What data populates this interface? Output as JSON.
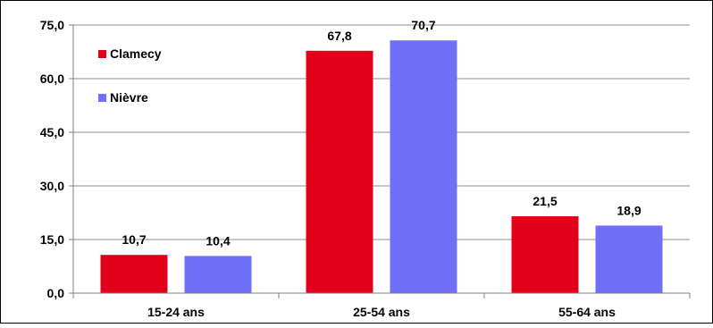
{
  "chart_data": {
    "type": "bar",
    "categories": [
      "15-24 ans",
      "25-54 ans",
      "55-64 ans"
    ],
    "series": [
      {
        "name": "Clamecy",
        "values": [
          10.7,
          67.8,
          21.5
        ],
        "labels": [
          "10,7",
          "67,8",
          "21,5"
        ],
        "color": "#e3001b"
      },
      {
        "name": "Nièvre",
        "values": [
          10.4,
          70.7,
          18.9
        ],
        "labels": [
          "10,4",
          "70,7",
          "18,9"
        ],
        "color": "#6f6ff7"
      }
    ],
    "ylim": [
      0,
      75
    ],
    "yticks": [
      0,
      15,
      30,
      45,
      60,
      75
    ],
    "ytick_labels": [
      "0,0",
      "15,0",
      "30,0",
      "45,0",
      "60,0",
      "75,0"
    ],
    "title": "",
    "xlabel": "",
    "ylabel": "",
    "grid": true,
    "legend_position": "top-left"
  }
}
